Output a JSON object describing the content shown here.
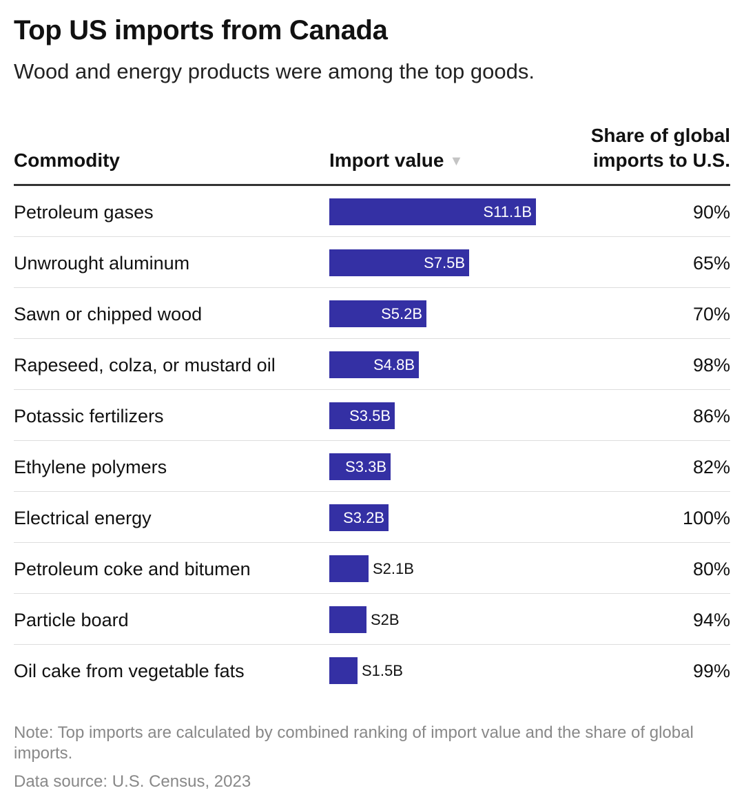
{
  "title": "Top US imports from Canada",
  "subtitle": "Wood and energy products were among the top goods.",
  "columns": {
    "commodity": "Commodity",
    "import_value": "Import value",
    "sort_indicator": "▼",
    "share_line1": "Share of global",
    "share_line2": "imports to U.S."
  },
  "colors": {
    "bar": "#3430a4",
    "bar_label_inside": "#ffffff",
    "bar_label_outside": "#111111"
  },
  "chart_data": {
    "type": "table",
    "value_unit": "billions USD",
    "value_max": 11.1,
    "rows": [
      {
        "commodity": "Petroleum gases",
        "value": 11.1,
        "value_label": "S11.1B",
        "share": "90%"
      },
      {
        "commodity": "Unwrought aluminum",
        "value": 7.5,
        "value_label": "S7.5B",
        "share": "65%"
      },
      {
        "commodity": "Sawn or chipped wood",
        "value": 5.2,
        "value_label": "S5.2B",
        "share": "70%"
      },
      {
        "commodity": "Rapeseed, colza, or mustard oil",
        "value": 4.8,
        "value_label": "S4.8B",
        "share": "98%"
      },
      {
        "commodity": "Potassic fertilizers",
        "value": 3.5,
        "value_label": "S3.5B",
        "share": "86%"
      },
      {
        "commodity": "Ethylene polymers",
        "value": 3.3,
        "value_label": "S3.3B",
        "share": "82%"
      },
      {
        "commodity": "Electrical energy",
        "value": 3.2,
        "value_label": "S3.2B",
        "share": "100%"
      },
      {
        "commodity": "Petroleum coke and bitumen",
        "value": 2.1,
        "value_label": "S2.1B",
        "share": "80%"
      },
      {
        "commodity": "Particle board",
        "value": 2.0,
        "value_label": "S2B",
        "share": "94%"
      },
      {
        "commodity": "Oil cake from vegetable fats",
        "value": 1.5,
        "value_label": "S1.5B",
        "share": "99%"
      }
    ]
  },
  "note": "Note: Top imports are calculated by combined ranking of import value and the share of global imports.",
  "source": "Data source: U.S. Census, 2023"
}
